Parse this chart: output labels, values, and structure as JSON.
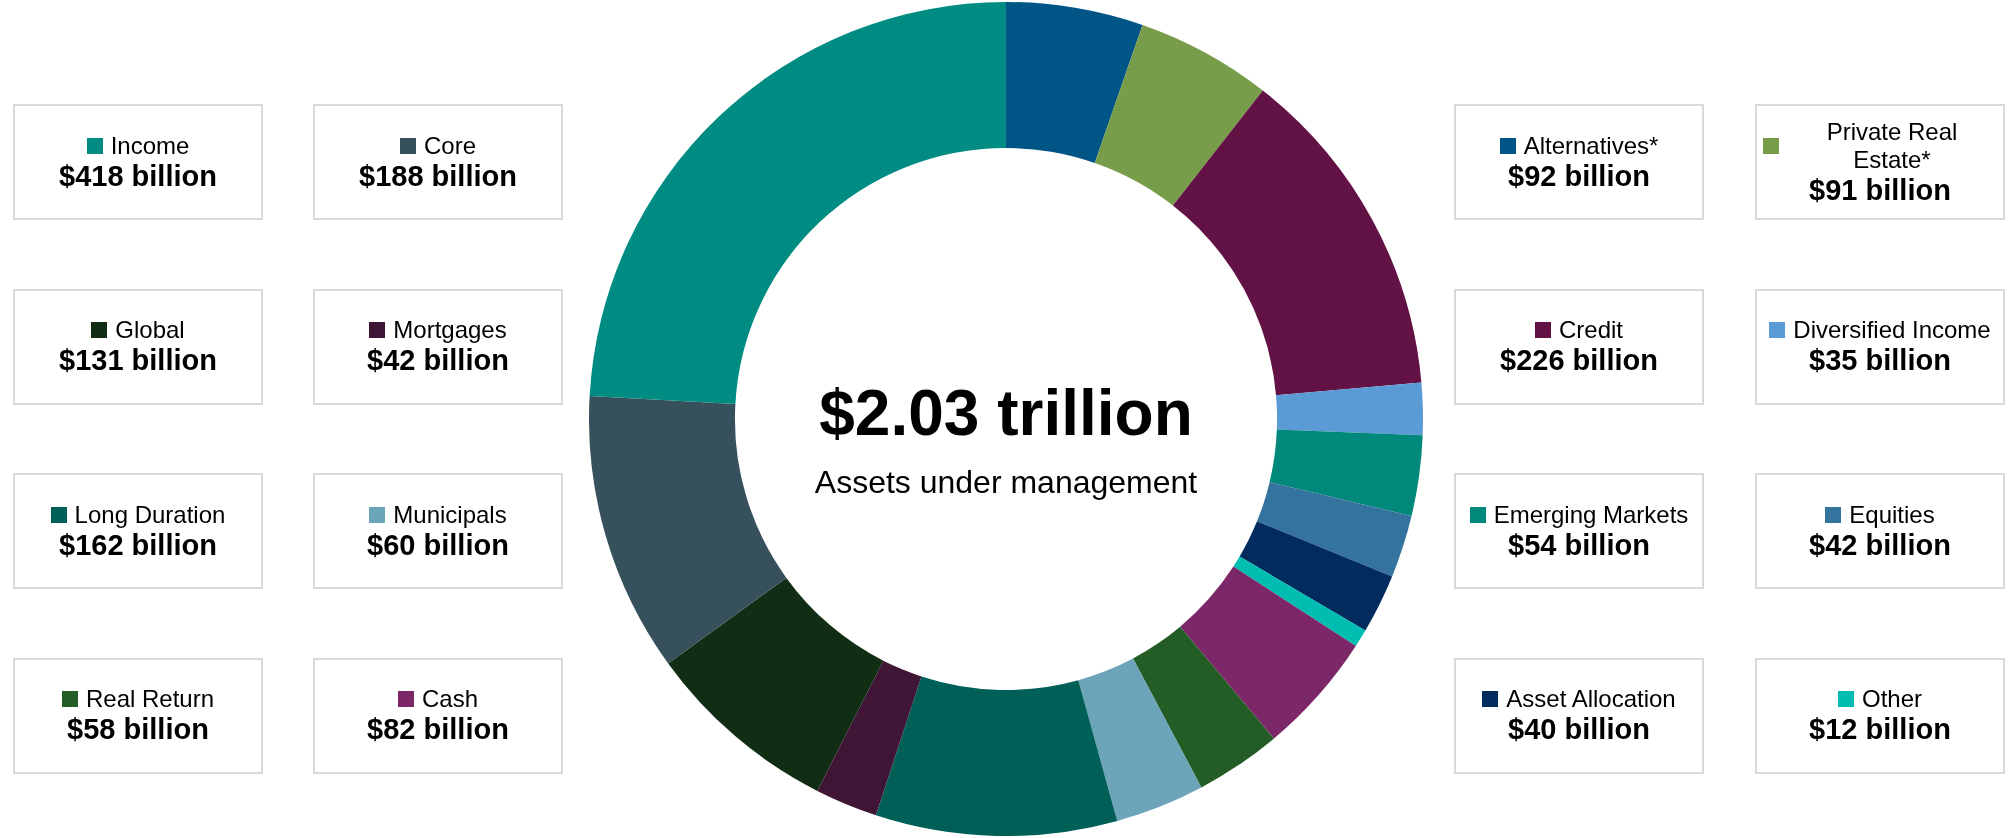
{
  "chart_data": {
    "type": "donut",
    "title": "$2.03 trillion",
    "subtitle": "Assets under management",
    "legend": "right",
    "categories": [
      "Alternatives*",
      "Private Real Estate*",
      "Credit",
      "Diversified Income",
      "Emerging Markets",
      "Equities",
      "Asset Allocation",
      "Other",
      "Cash",
      "Real Return",
      "Municipals",
      "Long Duration",
      "Mortgages",
      "Global",
      "Core",
      "Income"
    ],
    "values": [
      92,
      91,
      226,
      35,
      54,
      42,
      40,
      12,
      82,
      58,
      60,
      162,
      42,
      131,
      188,
      418
    ],
    "value_labels": [
      "$92 billion",
      "$91 billion",
      "$226 billion",
      "$35 billion",
      "$54 billion",
      "$42 billion",
      "$40 billion",
      "$12 billion",
      "$82 billion",
      "$58 billion",
      "$60 billion",
      "$162 billion",
      "$42 billion",
      "$131 billion",
      "$188 billion",
      "$418 billion"
    ],
    "colors": [
      "#005587",
      "#789d4a",
      "#621244",
      "#5b9bd5",
      "#00887a",
      "#35739f",
      "#032c5e",
      "#00bdb2",
      "#7c2868",
      "#235c24",
      "#6ca4b9",
      "#006058",
      "#3f1636",
      "#112d14",
      "#36515c",
      "#008c82"
    ]
  }
}
